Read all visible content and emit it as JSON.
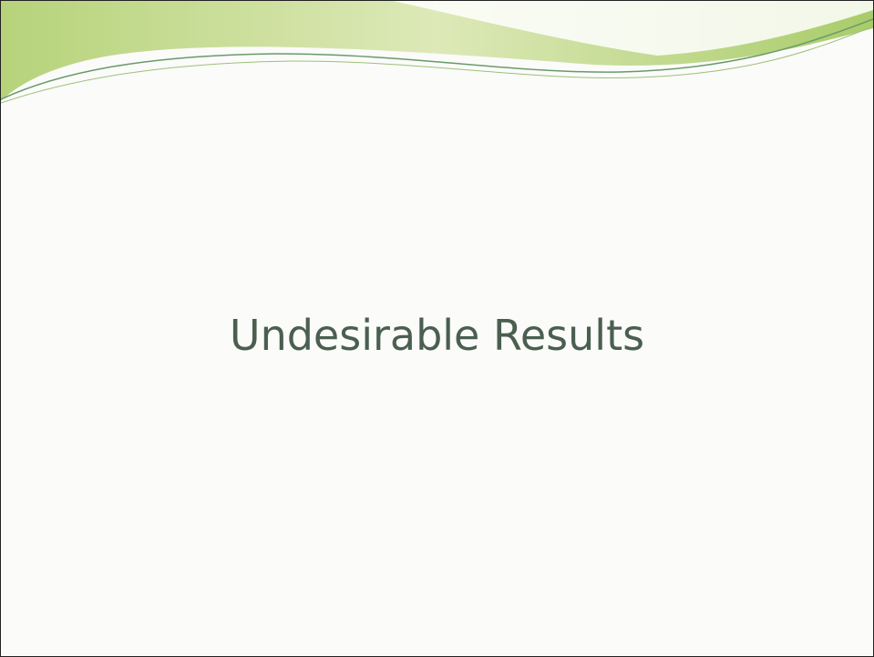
{
  "slide": {
    "title": "Undesirable Results"
  }
}
